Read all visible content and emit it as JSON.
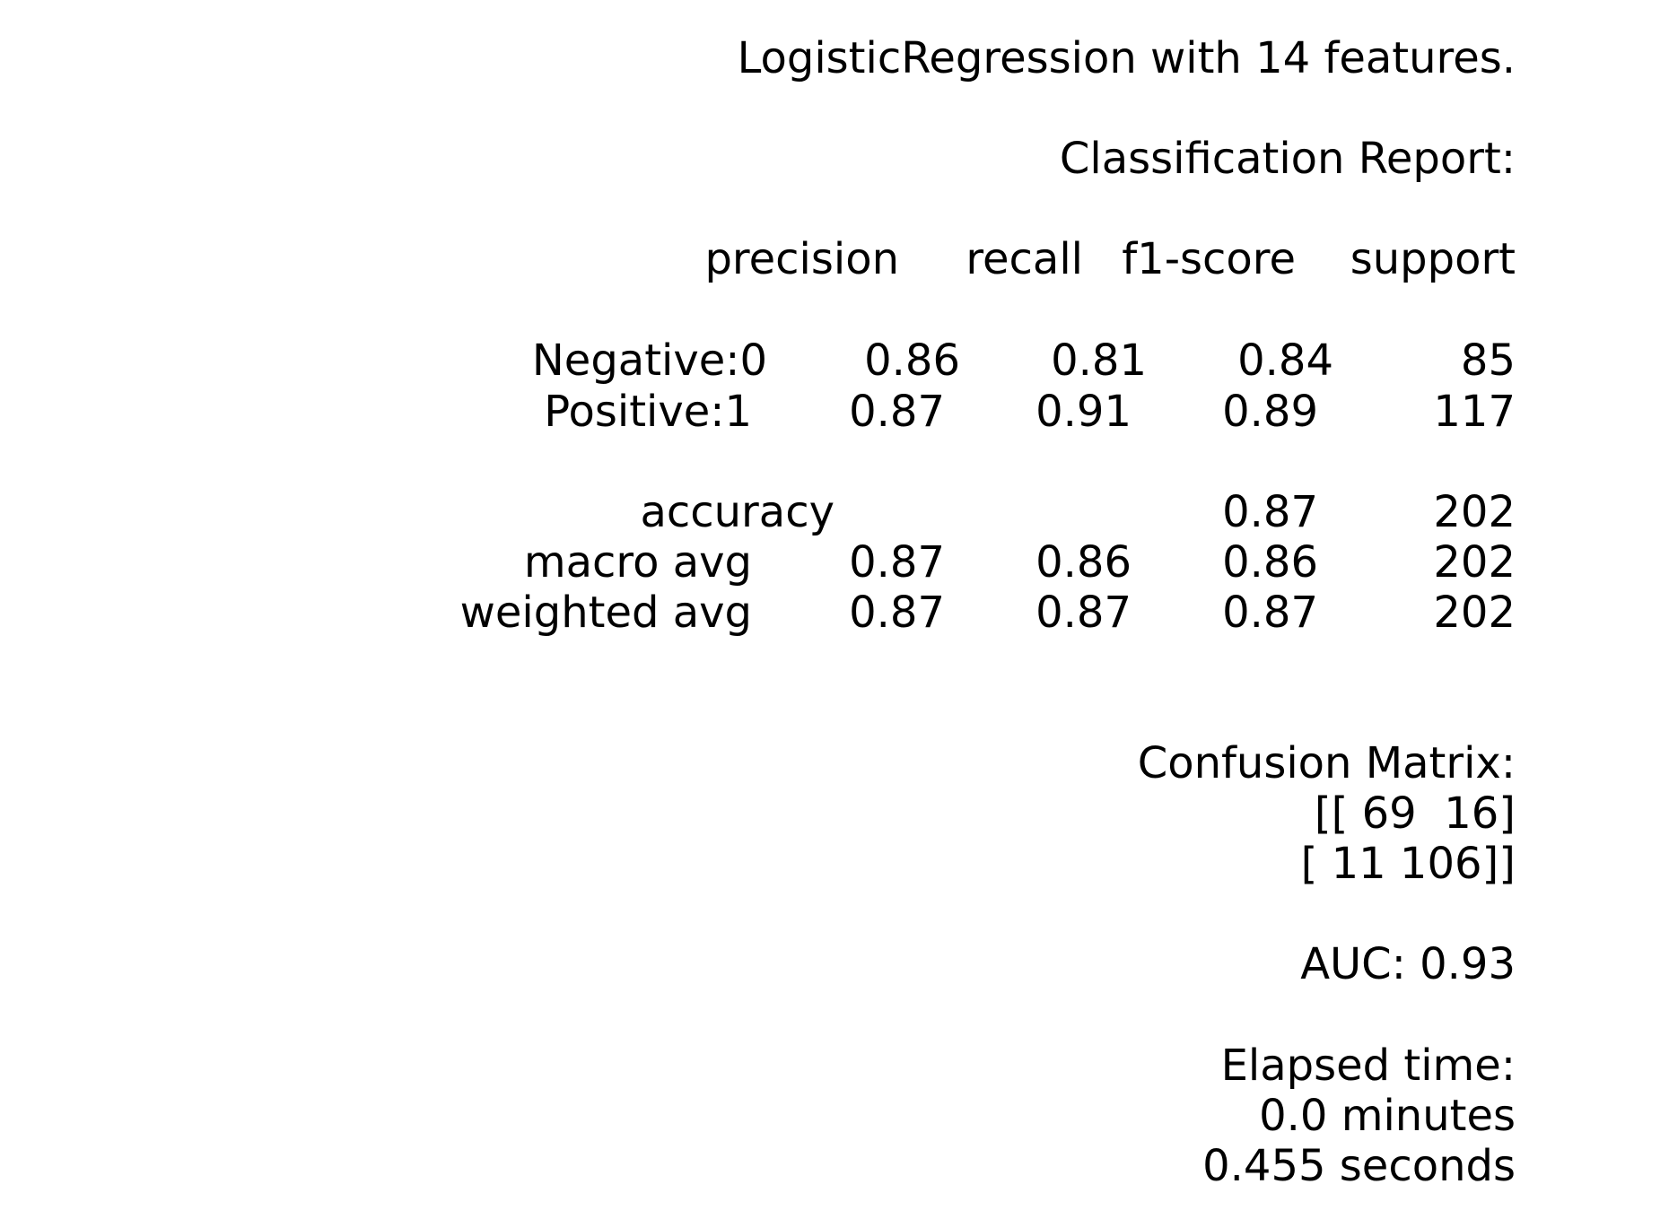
{
  "report": {
    "title": "LogisticRegression with 14 features.",
    "classification_heading": "Classification Report:",
    "columns": [
      "precision",
      "recall",
      "f1-score",
      "support"
    ],
    "rows": [
      {
        "label": "Negative:0",
        "precision": "0.86",
        "recall": "0.81",
        "f1": "0.84",
        "support": "85"
      },
      {
        "label": "Positive:1",
        "precision": "0.87",
        "recall": "0.91",
        "f1": "0.89",
        "support": "117"
      }
    ],
    "summary": [
      {
        "label": "accuracy",
        "precision": "",
        "recall": "",
        "f1": "0.87",
        "support": "202"
      },
      {
        "label": "macro avg",
        "precision": "0.87",
        "recall": "0.86",
        "f1": "0.86",
        "support": "202"
      },
      {
        "label": "weighted avg",
        "precision": "0.87",
        "recall": "0.87",
        "f1": "0.87",
        "support": "202"
      }
    ],
    "confusion_heading": "Confusion Matrix:",
    "confusion_rows": [
      "[[ 69  16]",
      "[ 11 106]]"
    ],
    "auc": "AUC: 0.93",
    "elapsed_heading": "Elapsed time:",
    "elapsed_minutes": "0.0 minutes",
    "elapsed_seconds": "0.455 seconds"
  }
}
